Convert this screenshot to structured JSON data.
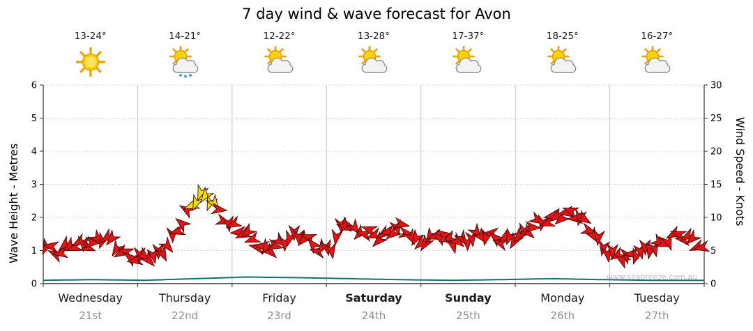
{
  "watermark": "www.seabreeze.com.au",
  "days": [
    {
      "name": "Wednesday",
      "date": "21st",
      "temp": "13-24°",
      "icon": "sunny",
      "weekend": false
    },
    {
      "name": "Thursday",
      "date": "22nd",
      "temp": "14-21°",
      "icon": "sun-showers",
      "weekend": false
    },
    {
      "name": "Friday",
      "date": "23rd",
      "temp": "12-22°",
      "icon": "sun-cloud",
      "weekend": false
    },
    {
      "name": "Saturday",
      "date": "24th",
      "temp": "13-28°",
      "icon": "sun-cloud",
      "weekend": true
    },
    {
      "name": "Sunday",
      "date": "25th",
      "temp": "17-37°",
      "icon": "sun-cloud",
      "weekend": true
    },
    {
      "name": "Monday",
      "date": "26th",
      "temp": "18-25°",
      "icon": "sun-cloud",
      "weekend": false
    },
    {
      "name": "Tuesday",
      "date": "27th",
      "temp": "16-27°",
      "icon": "sun-cloud",
      "weekend": false
    }
  ],
  "chart_data": {
    "type": "line",
    "style": "wind-direction-arrows",
    "title": "7 day wind & wave forecast for Avon",
    "x_categories": [
      "Wednesday 21st",
      "Thursday 22nd",
      "Friday 23rd",
      "Saturday 24th",
      "Sunday 25th",
      "Monday 26th",
      "Tuesday 27th"
    ],
    "left_axis": {
      "label": "Wave Height - Metres",
      "min": 0,
      "max": 6,
      "ticks": [
        0,
        1,
        2,
        3,
        4,
        5,
        6
      ]
    },
    "right_axis": {
      "label": "Wind Speed - Knots",
      "min": 0,
      "max": 30,
      "ticks": [
        0,
        5,
        10,
        15,
        20,
        25,
        30
      ]
    },
    "samples_per_day": 8,
    "series": [
      {
        "name": "Wind Speed",
        "unit": "knots",
        "axis": "right",
        "values": [
          5.5,
          4.2,
          5.8,
          6.3,
          6.0,
          6.8,
          5.2,
          4.4,
          4.0,
          3.6,
          5.0,
          8.5,
          11.5,
          13.0,
          12.2,
          10.0,
          8.2,
          6.8,
          5.2,
          5.6,
          6.6,
          7.0,
          6.4,
          5.4,
          5.6,
          9.0,
          7.6,
          8.2,
          7.0,
          7.6,
          8.4,
          6.6,
          6.6,
          7.2,
          6.0,
          6.6,
          7.4,
          7.0,
          6.4,
          7.0,
          7.6,
          8.6,
          9.2,
          10.4,
          11.0,
          9.4,
          7.0,
          5.2,
          4.4,
          3.8,
          4.6,
          5.6,
          6.6,
          7.2,
          6.4,
          5.6
        ]
      },
      {
        "name": "Wave Height",
        "unit": "metres",
        "axis": "left",
        "values": [
          0.1,
          0.12,
          0.1,
          0.15,
          0.2,
          0.18,
          0.15,
          0.12,
          0.1,
          0.12,
          0.15,
          0.12,
          0.1,
          0.1
        ]
      }
    ],
    "strong_threshold_knots": 11.6,
    "grid": true,
    "colors": {
      "arrow": "#e51414",
      "arrow_strong": "#f2e000",
      "arrow_outline": "#420000",
      "wave": "#0e7070",
      "grid": "#c4c4c4",
      "axis": "#333333"
    }
  }
}
